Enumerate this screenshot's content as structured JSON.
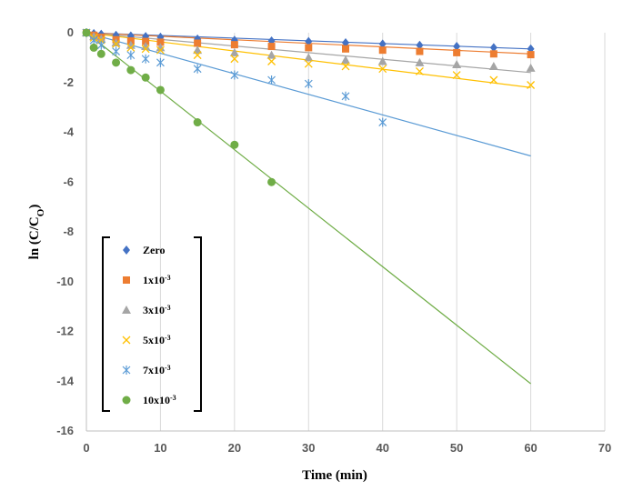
{
  "chart_data": {
    "type": "scatter",
    "title": "",
    "xlabel": "Time (min)",
    "ylabel": "ln (C/C0)",
    "ylabel_parts": {
      "main": "ln (C/C",
      "sub": "O",
      "close": ")"
    },
    "xlim": [
      0,
      70
    ],
    "ylim": [
      -16,
      0
    ],
    "xticks": [
      0,
      10,
      20,
      30,
      40,
      50,
      60,
      70
    ],
    "yticks": [
      0,
      -2,
      -4,
      -6,
      -8,
      -10,
      -12,
      -14,
      -16
    ],
    "grid": {
      "x": true,
      "y": false
    },
    "legend_position": "left",
    "series": [
      {
        "name": "Zero",
        "label_base": "Zero",
        "label_exp": "",
        "marker": "diamond",
        "color": "#4472C4",
        "x": [
          0,
          1,
          2,
          4,
          6,
          8,
          10,
          15,
          20,
          25,
          30,
          35,
          40,
          45,
          50,
          55,
          60
        ],
        "y": [
          0,
          -0.03,
          -0.06,
          -0.1,
          -0.13,
          -0.15,
          -0.18,
          -0.25,
          -0.3,
          -0.33,
          -0.35,
          -0.4,
          -0.45,
          -0.5,
          -0.55,
          -0.6,
          -0.65
        ],
        "fit": {
          "x": [
            0,
            60
          ],
          "y": [
            0,
            -0.65
          ]
        }
      },
      {
        "name": "1x10-3",
        "label_base": "1x10",
        "label_exp": "-3",
        "marker": "square",
        "color": "#ED7D31",
        "x": [
          0,
          1,
          2,
          4,
          6,
          8,
          10,
          15,
          20,
          25,
          30,
          35,
          40,
          45,
          50,
          55,
          60
        ],
        "y": [
          0,
          -0.1,
          -0.18,
          -0.28,
          -0.33,
          -0.35,
          -0.38,
          -0.42,
          -0.48,
          -0.55,
          -0.6,
          -0.65,
          -0.7,
          -0.75,
          -0.8,
          -0.85,
          -0.88
        ],
        "fit": {
          "x": [
            0,
            60
          ],
          "y": [
            0,
            -0.85
          ]
        }
      },
      {
        "name": "3x10-3",
        "label_base": "3x10",
        "label_exp": "-3",
        "marker": "triangle",
        "color": "#A5A5A5",
        "x": [
          0,
          1,
          2,
          4,
          6,
          8,
          10,
          15,
          20,
          25,
          30,
          35,
          40,
          45,
          50,
          55,
          60
        ],
        "y": [
          0,
          -0.15,
          -0.25,
          -0.4,
          -0.5,
          -0.55,
          -0.6,
          -0.7,
          -0.8,
          -0.9,
          -1.0,
          -1.1,
          -1.15,
          -1.2,
          -1.28,
          -1.35,
          -1.42
        ],
        "fit": {
          "x": [
            0,
            60
          ],
          "y": [
            0,
            -1.6
          ]
        }
      },
      {
        "name": "5x10-3",
        "label_base": "5x10",
        "label_exp": "-3",
        "marker": "x",
        "color": "#FFC000",
        "x": [
          0,
          1,
          2,
          4,
          6,
          8,
          10,
          15,
          20,
          25,
          30,
          35,
          40,
          45,
          50,
          55,
          60
        ],
        "y": [
          0,
          -0.2,
          -0.3,
          -0.45,
          -0.6,
          -0.65,
          -0.7,
          -0.9,
          -1.05,
          -1.15,
          -1.25,
          -1.35,
          -1.45,
          -1.55,
          -1.7,
          -1.9,
          -2.1
        ],
        "fit": {
          "x": [
            0,
            60
          ],
          "y": [
            0,
            -2.2
          ]
        }
      },
      {
        "name": "7x10-3",
        "label_base": "7x10",
        "label_exp": "-3",
        "marker": "asterisk",
        "color": "#5B9BD5",
        "x": [
          0,
          1,
          2,
          4,
          6,
          8,
          10,
          15,
          20,
          25,
          30,
          35,
          40
        ],
        "y": [
          0,
          -0.3,
          -0.5,
          -0.75,
          -0.9,
          -1.05,
          -1.2,
          -1.45,
          -1.7,
          -1.9,
          -2.05,
          -2.55,
          -3.6
        ],
        "fit": {
          "x": [
            0,
            60
          ],
          "y": [
            0,
            -4.95
          ]
        }
      },
      {
        "name": "10x10-3",
        "label_base": "10x10",
        "label_exp": "-3",
        "marker": "circle",
        "color": "#70AD47",
        "x": [
          0,
          1,
          2,
          4,
          6,
          8,
          10,
          15,
          20,
          25
        ],
        "y": [
          0,
          -0.6,
          -0.85,
          -1.2,
          -1.5,
          -1.8,
          -2.3,
          -3.6,
          -4.5,
          -6.0
        ],
        "fit": {
          "x": [
            0,
            60
          ],
          "y": [
            0,
            -14.1
          ]
        }
      }
    ]
  }
}
